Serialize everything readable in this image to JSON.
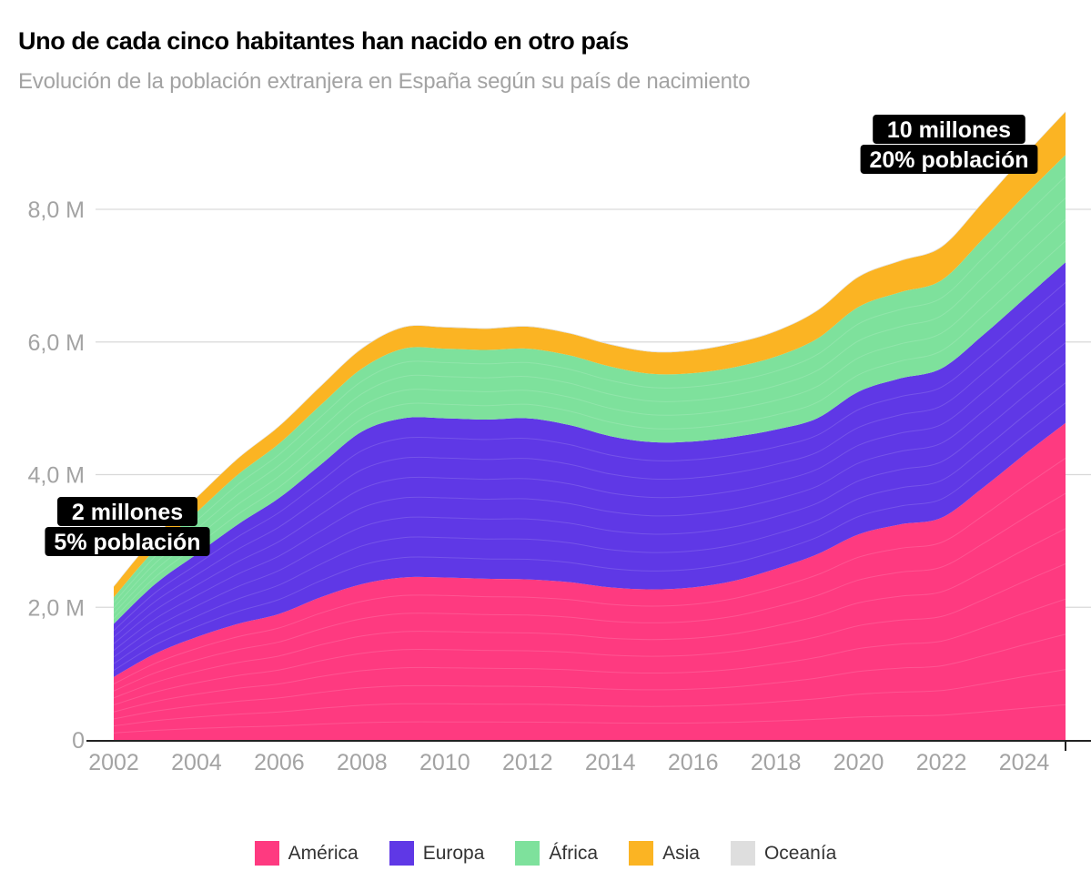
{
  "title": "Uno de cada cinco habitantes han nacido en otro país",
  "subtitle": "Evolución de la población extranjera en España según su país de nacimiento",
  "chart_data": {
    "type": "area",
    "stacked": true,
    "x": [
      2002,
      2003,
      2004,
      2005,
      2006,
      2007,
      2008,
      2009,
      2010,
      2011,
      2012,
      2013,
      2014,
      2015,
      2016,
      2017,
      2018,
      2019,
      2020,
      2021,
      2022,
      2023,
      2024,
      2025
    ],
    "series": [
      {
        "name": "América",
        "color": "#fe3a80",
        "values": [
          0.95,
          1.3,
          1.55,
          1.75,
          1.9,
          2.15,
          2.35,
          2.45,
          2.45,
          2.43,
          2.42,
          2.38,
          2.3,
          2.27,
          2.3,
          2.4,
          2.58,
          2.8,
          3.1,
          3.25,
          3.35,
          3.8,
          4.3,
          4.78
        ]
      },
      {
        "name": "Europa",
        "color": "#5f38e6",
        "values": [
          0.8,
          1.05,
          1.25,
          1.5,
          1.75,
          2.0,
          2.3,
          2.4,
          2.4,
          2.4,
          2.43,
          2.37,
          2.28,
          2.22,
          2.2,
          2.17,
          2.1,
          2.05,
          2.15,
          2.2,
          2.25,
          2.3,
          2.35,
          2.42
        ]
      },
      {
        "name": "África",
        "color": "#7ee19c",
        "values": [
          0.4,
          0.52,
          0.63,
          0.75,
          0.82,
          0.9,
          0.95,
          1.05,
          1.05,
          1.05,
          1.05,
          1.05,
          1.05,
          1.03,
          1.03,
          1.05,
          1.1,
          1.2,
          1.28,
          1.3,
          1.33,
          1.45,
          1.55,
          1.62
        ]
      },
      {
        "name": "Asia",
        "color": "#fbb423",
        "values": [
          0.16,
          0.19,
          0.22,
          0.24,
          0.26,
          0.28,
          0.3,
          0.32,
          0.32,
          0.32,
          0.33,
          0.33,
          0.33,
          0.33,
          0.34,
          0.36,
          0.38,
          0.42,
          0.45,
          0.47,
          0.5,
          0.55,
          0.6,
          0.65
        ]
      },
      {
        "name": "Oceanía",
        "color": "#dedede",
        "values": [
          0.01,
          0.01,
          0.01,
          0.01,
          0.01,
          0.01,
          0.01,
          0.01,
          0.01,
          0.01,
          0.01,
          0.01,
          0.01,
          0.01,
          0.01,
          0.01,
          0.01,
          0.01,
          0.01,
          0.01,
          0.01,
          0.01,
          0.01,
          0.01
        ]
      }
    ],
    "unit": "millones",
    "ylim": [
      0,
      9.4
    ],
    "yticks": [
      0,
      2,
      4,
      6,
      8
    ],
    "ytick_labels": [
      "0",
      "2,0 M",
      "4,0 M",
      "6,0 M",
      "8,0 M"
    ],
    "xticks": [
      2002,
      2004,
      2006,
      2008,
      2010,
      2012,
      2014,
      2016,
      2018,
      2020,
      2022,
      2024
    ],
    "xtick_labels": [
      "2002",
      "2004",
      "2006",
      "2008",
      "2010",
      "2012",
      "2014",
      "2016",
      "2018",
      "2020",
      "2022",
      "2024"
    ],
    "grid": "horizontal",
    "legend_position": "bottom",
    "annotations": [
      {
        "lines": [
          "2 millones",
          "5% población"
        ],
        "x": 2002
      },
      {
        "lines": [
          "10 millones",
          "20% población"
        ],
        "x": 2025
      }
    ]
  }
}
